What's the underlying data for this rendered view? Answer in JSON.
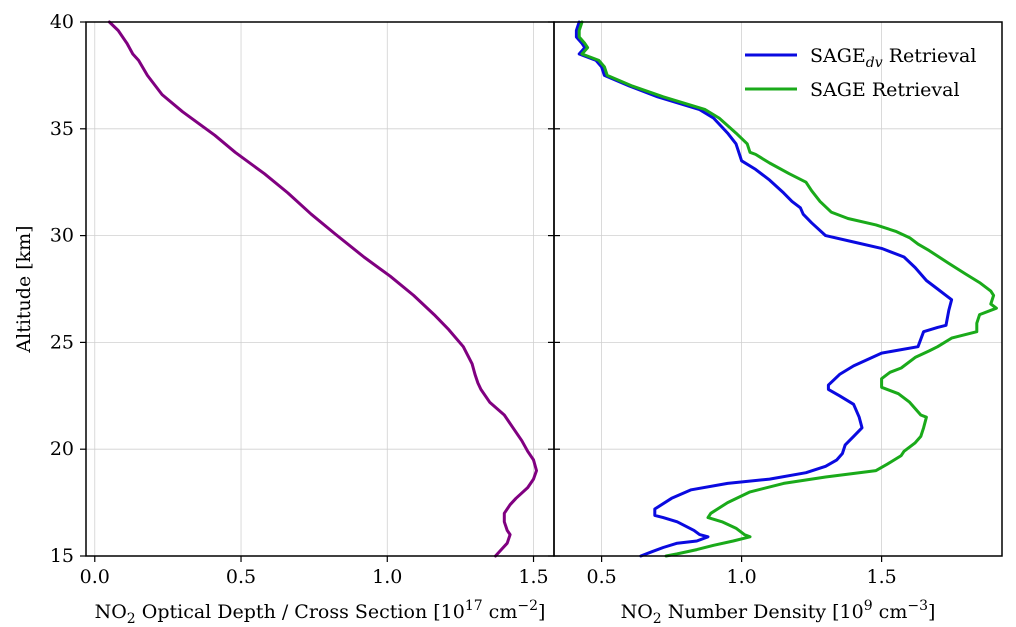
{
  "chart_data": [
    {
      "type": "line",
      "xlabel_parts": [
        "NO",
        "2",
        " Optical Depth / Cross Section [10",
        "17",
        " cm",
        "−2",
        "]"
      ],
      "ylabel": "Altitude [km]",
      "xlim": [
        -0.03,
        1.57
      ],
      "ylim": [
        15,
        40
      ],
      "xticks": [
        0.0,
        0.5,
        1.0,
        1.5
      ],
      "xtick_labels": [
        "0.0",
        "0.5",
        "1.0",
        "1.5"
      ],
      "yticks": [
        15,
        20,
        25,
        30,
        35,
        40
      ],
      "ytick_labels": [
        "15",
        "20",
        "25",
        "30",
        "35",
        "40"
      ],
      "grid": true,
      "series": [
        {
          "color": "#800080",
          "points": [
            [
              0.05,
              40.0
            ],
            [
              0.08,
              39.6
            ],
            [
              0.11,
              39.0
            ],
            [
              0.13,
              38.5
            ],
            [
              0.15,
              38.2
            ],
            [
              0.18,
              37.5
            ],
            [
              0.23,
              36.6
            ],
            [
              0.3,
              35.8
            ],
            [
              0.41,
              34.7
            ],
            [
              0.48,
              33.9
            ],
            [
              0.58,
              32.9
            ],
            [
              0.66,
              32.0
            ],
            [
              0.74,
              31.0
            ],
            [
              0.82,
              30.1
            ],
            [
              0.92,
              29.0
            ],
            [
              1.01,
              28.1
            ],
            [
              1.09,
              27.2
            ],
            [
              1.16,
              26.3
            ],
            [
              1.21,
              25.6
            ],
            [
              1.26,
              24.8
            ],
            [
              1.29,
              24.0
            ],
            [
              1.3,
              23.5
            ],
            [
              1.31,
              23.1
            ],
            [
              1.32,
              22.8
            ],
            [
              1.35,
              22.2
            ],
            [
              1.4,
              21.6
            ],
            [
              1.43,
              21.0
            ],
            [
              1.46,
              20.4
            ],
            [
              1.48,
              19.9
            ],
            [
              1.5,
              19.5
            ],
            [
              1.51,
              19.0
            ],
            [
              1.5,
              18.6
            ],
            [
              1.48,
              18.2
            ],
            [
              1.44,
              17.7
            ],
            [
              1.42,
              17.4
            ],
            [
              1.4,
              17.0
            ],
            [
              1.4,
              16.6
            ],
            [
              1.41,
              16.2
            ],
            [
              1.42,
              16.0
            ],
            [
              1.41,
              15.6
            ],
            [
              1.39,
              15.3
            ],
            [
              1.37,
              15.0
            ]
          ]
        }
      ]
    },
    {
      "type": "line",
      "xlabel_parts": [
        "NO",
        "2",
        " Number Density [10",
        "9",
        " cm",
        "−3",
        "]"
      ],
      "xlim": [
        0.33,
        1.93
      ],
      "ylim": [
        15,
        40
      ],
      "xticks": [
        0.5,
        1.0,
        1.5
      ],
      "xtick_labels": [
        "0.5",
        "1.0",
        "1.5"
      ],
      "yticks": [
        15,
        20,
        25,
        30,
        35,
        40
      ],
      "grid": true,
      "legend": {
        "placement": "top-right",
        "entries": [
          {
            "parts": [
              "SAGE",
              "dv",
              " Retrieval"
            ],
            "color": "#0a0ae0"
          },
          {
            "parts": [
              "SAGE Retrieval",
              "",
              ""
            ],
            "color": "#1aaa1a"
          }
        ]
      },
      "series": [
        {
          "name": "SAGEdv Retrieval",
          "color": "#0a0ae0",
          "points": [
            [
              0.42,
              40.0
            ],
            [
              0.41,
              39.6
            ],
            [
              0.41,
              39.3
            ],
            [
              0.43,
              39.0
            ],
            [
              0.44,
              38.8
            ],
            [
              0.42,
              38.5
            ],
            [
              0.48,
              38.2
            ],
            [
              0.5,
              37.9
            ],
            [
              0.51,
              37.5
            ],
            [
              0.6,
              37.0
            ],
            [
              0.7,
              36.5
            ],
            [
              0.85,
              35.9
            ],
            [
              0.9,
              35.5
            ],
            [
              0.95,
              34.8
            ],
            [
              0.98,
              34.3
            ],
            [
              0.99,
              33.9
            ],
            [
              1.0,
              33.5
            ],
            [
              1.05,
              33.1
            ],
            [
              1.1,
              32.6
            ],
            [
              1.15,
              32.0
            ],
            [
              1.18,
              31.6
            ],
            [
              1.21,
              31.3
            ],
            [
              1.22,
              31.0
            ],
            [
              1.25,
              30.6
            ],
            [
              1.3,
              30.0
            ],
            [
              1.4,
              29.7
            ],
            [
              1.5,
              29.4
            ],
            [
              1.58,
              29.0
            ],
            [
              1.62,
              28.5
            ],
            [
              1.66,
              27.9
            ],
            [
              1.7,
              27.5
            ],
            [
              1.73,
              27.2
            ],
            [
              1.75,
              27.0
            ],
            [
              1.74,
              26.5
            ],
            [
              1.73,
              25.8
            ],
            [
              1.7,
              25.7
            ],
            [
              1.65,
              25.5
            ],
            [
              1.63,
              24.8
            ],
            [
              1.5,
              24.5
            ],
            [
              1.45,
              24.2
            ],
            [
              1.4,
              23.9
            ],
            [
              1.35,
              23.5
            ],
            [
              1.31,
              23.0
            ],
            [
              1.31,
              22.8
            ],
            [
              1.35,
              22.5
            ],
            [
              1.4,
              22.1
            ],
            [
              1.42,
              21.5
            ],
            [
              1.43,
              21.0
            ],
            [
              1.4,
              20.6
            ],
            [
              1.37,
              20.2
            ],
            [
              1.36,
              19.8
            ],
            [
              1.34,
              19.5
            ],
            [
              1.3,
              19.2
            ],
            [
              1.23,
              18.9
            ],
            [
              1.1,
              18.6
            ],
            [
              0.95,
              18.4
            ],
            [
              0.82,
              18.1
            ],
            [
              0.75,
              17.7
            ],
            [
              0.69,
              17.2
            ],
            [
              0.69,
              16.9
            ],
            [
              0.72,
              16.8
            ],
            [
              0.77,
              16.6
            ],
            [
              0.83,
              16.2
            ],
            [
              0.85,
              16.0
            ],
            [
              0.88,
              15.9
            ],
            [
              0.84,
              15.7
            ],
            [
              0.77,
              15.6
            ],
            [
              0.72,
              15.4
            ],
            [
              0.68,
              15.2
            ],
            [
              0.64,
              15.0
            ]
          ]
        },
        {
          "name": "SAGE Retrieval",
          "color": "#1aaa1a",
          "points": [
            [
              0.43,
              40.0
            ],
            [
              0.42,
              39.6
            ],
            [
              0.42,
              39.3
            ],
            [
              0.44,
              39.0
            ],
            [
              0.45,
              38.8
            ],
            [
              0.43,
              38.5
            ],
            [
              0.49,
              38.2
            ],
            [
              0.51,
              37.9
            ],
            [
              0.52,
              37.5
            ],
            [
              0.61,
              37.0
            ],
            [
              0.72,
              36.5
            ],
            [
              0.87,
              35.9
            ],
            [
              0.92,
              35.5
            ],
            [
              0.98,
              34.8
            ],
            [
              1.02,
              34.3
            ],
            [
              1.03,
              33.9
            ],
            [
              1.05,
              33.8
            ],
            [
              1.1,
              33.4
            ],
            [
              1.17,
              32.9
            ],
            [
              1.23,
              32.5
            ],
            [
              1.25,
              32.1
            ],
            [
              1.28,
              31.6
            ],
            [
              1.32,
              31.1
            ],
            [
              1.38,
              30.8
            ],
            [
              1.48,
              30.5
            ],
            [
              1.55,
              30.2
            ],
            [
              1.6,
              29.9
            ],
            [
              1.63,
              29.6
            ],
            [
              1.67,
              29.3
            ],
            [
              1.74,
              28.7
            ],
            [
              1.8,
              28.2
            ],
            [
              1.85,
              27.8
            ],
            [
              1.89,
              27.4
            ],
            [
              1.9,
              27.2
            ],
            [
              1.89,
              26.8
            ],
            [
              1.91,
              26.6
            ],
            [
              1.85,
              26.3
            ],
            [
              1.84,
              25.9
            ],
            [
              1.84,
              25.5
            ],
            [
              1.75,
              25.2
            ],
            [
              1.7,
              24.8
            ],
            [
              1.67,
              24.6
            ],
            [
              1.62,
              24.3
            ],
            [
              1.57,
              23.8
            ],
            [
              1.53,
              23.6
            ],
            [
              1.5,
              23.3
            ],
            [
              1.5,
              22.9
            ],
            [
              1.56,
              22.6
            ],
            [
              1.6,
              22.2
            ],
            [
              1.62,
              21.9
            ],
            [
              1.64,
              21.6
            ],
            [
              1.66,
              21.5
            ],
            [
              1.65,
              21.0
            ],
            [
              1.64,
              20.6
            ],
            [
              1.62,
              20.3
            ],
            [
              1.6,
              20.1
            ],
            [
              1.58,
              19.9
            ],
            [
              1.57,
              19.7
            ],
            [
              1.52,
              19.3
            ],
            [
              1.48,
              19.0
            ],
            [
              1.3,
              18.7
            ],
            [
              1.15,
              18.4
            ],
            [
              1.03,
              18.0
            ],
            [
              0.95,
              17.5
            ],
            [
              0.89,
              17.0
            ],
            [
              0.88,
              16.8
            ],
            [
              0.93,
              16.6
            ],
            [
              0.98,
              16.3
            ],
            [
              1.01,
              16.0
            ],
            [
              1.03,
              15.9
            ],
            [
              0.97,
              15.7
            ],
            [
              0.9,
              15.5
            ],
            [
              0.84,
              15.3
            ],
            [
              0.77,
              15.1
            ],
            [
              0.73,
              15.0
            ]
          ]
        }
      ]
    }
  ]
}
